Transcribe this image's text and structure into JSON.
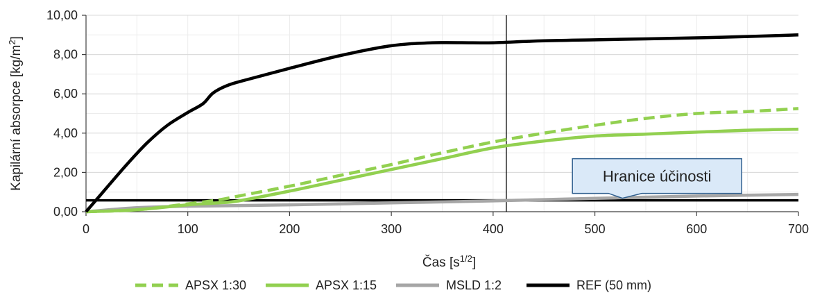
{
  "chart_data": {
    "type": "line",
    "title": "",
    "xlabel": "Čas [s",
    "xlabel_sup": "1/2",
    "xlabel_end": "]",
    "ylabel": "Kapilární absorpce [kg/m",
    "ylabel_sup": "2",
    "ylabel_end": "]",
    "xlim": [
      0,
      700
    ],
    "ylim": [
      0,
      10
    ],
    "xticks": [
      0,
      100,
      200,
      300,
      400,
      500,
      600,
      700
    ],
    "xtick_labels": [
      "0",
      "100",
      "200",
      "300",
      "400",
      "500",
      "600",
      "700"
    ],
    "yticks": [
      0,
      2,
      4,
      6,
      8,
      10
    ],
    "ytick_labels": [
      "0,00",
      "2,00",
      "4,00",
      "6,00",
      "8,00",
      "10,00"
    ],
    "grid": true,
    "legend_position": "bottom",
    "series": [
      {
        "name": "APSX 1:30",
        "color": "#92d050",
        "dash": "dashed",
        "x": [
          0,
          50,
          100,
          130,
          150,
          200,
          250,
          300,
          350,
          400,
          450,
          500,
          550,
          600,
          650,
          700
        ],
        "y": [
          0,
          0.1,
          0.4,
          0.6,
          0.8,
          1.3,
          1.85,
          2.4,
          3.0,
          3.55,
          4.0,
          4.4,
          4.75,
          5.0,
          5.1,
          5.25
        ]
      },
      {
        "name": "APSX 1:15",
        "color": "#92d050",
        "dash": "solid",
        "x": [
          0,
          50,
          100,
          130,
          150,
          200,
          250,
          300,
          350,
          400,
          450,
          500,
          550,
          600,
          650,
          700
        ],
        "y": [
          0,
          0.1,
          0.35,
          0.45,
          0.55,
          1.05,
          1.6,
          2.15,
          2.7,
          3.25,
          3.6,
          3.85,
          3.95,
          4.05,
          4.15,
          4.2
        ]
      },
      {
        "name": "MSLD 1:2",
        "color": "#a6a6a6",
        "dash": "solid",
        "x": [
          0,
          50,
          100,
          200,
          300,
          400,
          500,
          600,
          700
        ],
        "y": [
          0,
          0.2,
          0.28,
          0.35,
          0.45,
          0.55,
          0.68,
          0.8,
          0.88
        ]
      },
      {
        "name": "REF (50 mm)",
        "color": "#000000",
        "dash": "solid",
        "x": [
          0,
          20,
          40,
          60,
          80,
          100,
          115,
          125,
          140,
          160,
          200,
          250,
          300,
          340,
          380,
          400,
          450,
          500,
          550,
          600,
          650,
          700
        ],
        "y": [
          0,
          1.2,
          2.4,
          3.5,
          4.4,
          5.05,
          5.5,
          6.05,
          6.45,
          6.75,
          7.3,
          7.95,
          8.45,
          8.6,
          8.6,
          8.6,
          8.7,
          8.75,
          8.8,
          8.85,
          8.92,
          9.0
        ]
      }
    ],
    "reference_lines": {
      "horizontal_y": 0.58,
      "vertical_x": 413
    },
    "annotation": {
      "text": "Hranice účinosti",
      "at_x": 527,
      "at_y": 0.58
    }
  }
}
